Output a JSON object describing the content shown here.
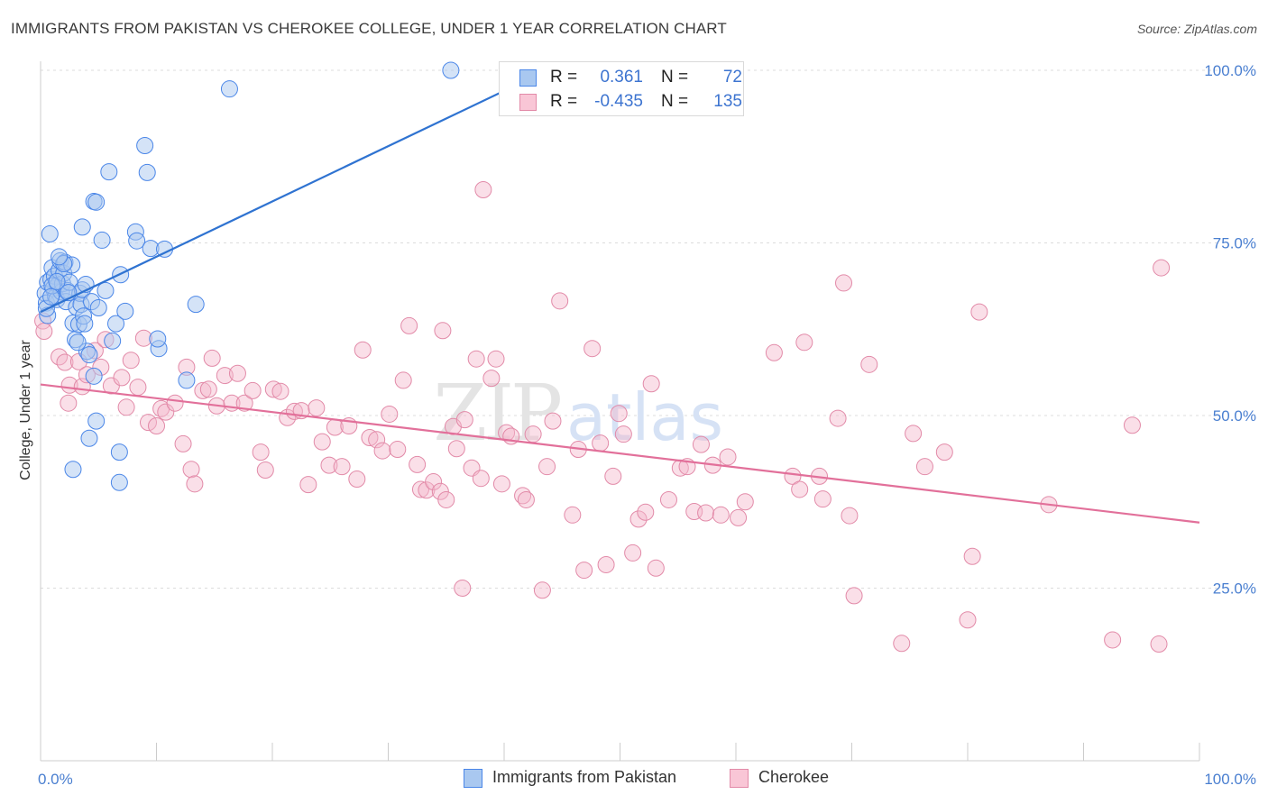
{
  "title": "IMMIGRANTS FROM PAKISTAN VS CHEROKEE COLLEGE, UNDER 1 YEAR CORRELATION CHART",
  "source": "Source: ZipAtlas.com",
  "watermark": {
    "zip": "ZIP",
    "atlas": "atlas"
  },
  "legend": {
    "rows": [
      {
        "r_label": "R =",
        "r_value": "0.361",
        "n_label": "N =",
        "n_value": "72",
        "color": "#4a86e8"
      },
      {
        "r_label": "R =",
        "r_value": "-0.435",
        "n_label": "N =",
        "n_value": "135",
        "color": "#e8719b"
      }
    ]
  },
  "bottom_legend": {
    "series1": "Immigrants from Pakistan",
    "series2": "Cherokee"
  },
  "colors": {
    "blue_fill": "#a9c8f0",
    "blue_stroke": "#4a86e8",
    "blue_line": "#2f73d1",
    "pink_fill": "#f5b8cc",
    "pink_stroke": "#e28aa8",
    "pink_line": "#e2709a",
    "grid": "#dcdcdc",
    "tick_text": "#4a7fd0"
  },
  "chart_data": {
    "type": "scatter",
    "title": "IMMIGRANTS FROM PAKISTAN VS CHEROKEE COLLEGE, UNDER 1 YEAR CORRELATION CHART",
    "xlabel": "",
    "ylabel": "College, Under 1 year",
    "xlim": [
      0,
      100
    ],
    "ylim": [
      0,
      105
    ],
    "x_tick_labels": [
      "0.0%",
      "100.0%"
    ],
    "y_ticks": [
      25,
      50,
      75,
      100
    ],
    "y_tick_labels": [
      "25.0%",
      "50.0%",
      "75.0%",
      "100.0%"
    ],
    "series": [
      {
        "name": "Immigrants from Pakistan",
        "r": 0.361,
        "n": 72,
        "trend": {
          "x": [
            0,
            40.6
          ],
          "y": [
            65.0,
            97.5
          ]
        },
        "points": [
          [
            0.4,
            67.7
          ],
          [
            0.5,
            66.3
          ],
          [
            0.6,
            69.3
          ],
          [
            0.8,
            76.3
          ],
          [
            0.9,
            69.7
          ],
          [
            1.0,
            71.4
          ],
          [
            1.1,
            68.4
          ],
          [
            1.2,
            70.2
          ],
          [
            1.3,
            67.2
          ],
          [
            1.4,
            66.8
          ],
          [
            1.5,
            68.9
          ],
          [
            1.6,
            71.0
          ],
          [
            1.7,
            72.4
          ],
          [
            1.8,
            67.9
          ],
          [
            1.9,
            69.1
          ],
          [
            2.0,
            70.6
          ],
          [
            2.1,
            72.2
          ],
          [
            2.2,
            66.5
          ],
          [
            2.3,
            68.1
          ],
          [
            2.5,
            69.3
          ],
          [
            2.7,
            71.8
          ],
          [
            2.8,
            63.4
          ],
          [
            3.0,
            61.0
          ],
          [
            3.1,
            65.7
          ],
          [
            3.3,
            63.2
          ],
          [
            3.4,
            67.7
          ],
          [
            3.5,
            66.1
          ],
          [
            3.6,
            68.2
          ],
          [
            3.7,
            64.4
          ],
          [
            3.8,
            63.3
          ],
          [
            3.9,
            69.0
          ],
          [
            3.6,
            77.3
          ],
          [
            4.0,
            59.3
          ],
          [
            4.2,
            58.8
          ],
          [
            4.4,
            66.5
          ],
          [
            4.6,
            81.0
          ],
          [
            4.8,
            80.9
          ],
          [
            5.0,
            65.6
          ],
          [
            5.3,
            75.4
          ],
          [
            5.6,
            68.1
          ],
          [
            5.9,
            85.3
          ],
          [
            6.2,
            60.8
          ],
          [
            6.5,
            63.3
          ],
          [
            6.9,
            70.4
          ],
          [
            7.3,
            65.1
          ],
          [
            8.2,
            76.6
          ],
          [
            8.3,
            75.3
          ],
          [
            9.0,
            89.1
          ],
          [
            9.2,
            85.2
          ],
          [
            9.5,
            74.2
          ],
          [
            10.2,
            59.7
          ],
          [
            10.1,
            61.1
          ],
          [
            10.7,
            74.1
          ],
          [
            12.6,
            55.1
          ],
          [
            13.4,
            66.1
          ],
          [
            16.3,
            97.3
          ],
          [
            35.4,
            100.0
          ],
          [
            4.2,
            46.7
          ],
          [
            4.8,
            49.2
          ],
          [
            2.8,
            42.2
          ],
          [
            6.8,
            44.7
          ],
          [
            6.8,
            40.3
          ],
          [
            0.6,
            64.5
          ],
          [
            0.5,
            65.5
          ],
          [
            1.0,
            68.8
          ],
          [
            1.4,
            69.4
          ],
          [
            2.0,
            72.0
          ],
          [
            2.4,
            67.8
          ],
          [
            3.2,
            60.6
          ],
          [
            4.6,
            55.7
          ],
          [
            1.6,
            73.0
          ],
          [
            0.9,
            67.2
          ]
        ]
      },
      {
        "name": "Cherokee",
        "r": -0.435,
        "n": 135,
        "trend": {
          "x": [
            0,
            100
          ],
          "y": [
            54.5,
            34.5
          ]
        },
        "points": [
          [
            0.2,
            63.7
          ],
          [
            0.3,
            62.2
          ],
          [
            1.6,
            58.5
          ],
          [
            2.1,
            57.7
          ],
          [
            2.4,
            51.8
          ],
          [
            2.5,
            54.4
          ],
          [
            3.3,
            57.8
          ],
          [
            3.6,
            54.2
          ],
          [
            4.0,
            55.9
          ],
          [
            4.7,
            59.4
          ],
          [
            5.2,
            57.0
          ],
          [
            5.6,
            61.0
          ],
          [
            6.1,
            54.3
          ],
          [
            7.0,
            55.5
          ],
          [
            7.4,
            51.2
          ],
          [
            7.8,
            58.0
          ],
          [
            8.4,
            54.1
          ],
          [
            8.9,
            61.2
          ],
          [
            9.3,
            49.0
          ],
          [
            10.0,
            48.5
          ],
          [
            10.4,
            51.0
          ],
          [
            10.8,
            50.5
          ],
          [
            11.6,
            51.8
          ],
          [
            12.3,
            45.9
          ],
          [
            12.6,
            57.0
          ],
          [
            13.0,
            42.2
          ],
          [
            13.3,
            40.1
          ],
          [
            14.0,
            53.6
          ],
          [
            14.5,
            53.8
          ],
          [
            14.8,
            58.3
          ],
          [
            15.2,
            51.4
          ],
          [
            15.9,
            55.8
          ],
          [
            16.5,
            51.8
          ],
          [
            17.0,
            56.1
          ],
          [
            17.6,
            51.8
          ],
          [
            18.3,
            53.6
          ],
          [
            19.0,
            44.7
          ],
          [
            19.4,
            42.1
          ],
          [
            20.1,
            53.8
          ],
          [
            20.7,
            53.5
          ],
          [
            21.3,
            49.7
          ],
          [
            21.9,
            50.6
          ],
          [
            22.5,
            50.7
          ],
          [
            23.1,
            40.0
          ],
          [
            23.8,
            51.1
          ],
          [
            24.3,
            46.2
          ],
          [
            24.9,
            42.8
          ],
          [
            25.4,
            48.3
          ],
          [
            26.0,
            42.6
          ],
          [
            26.6,
            48.5
          ],
          [
            27.3,
            40.8
          ],
          [
            27.8,
            59.5
          ],
          [
            28.4,
            46.8
          ],
          [
            29.0,
            46.5
          ],
          [
            29.5,
            44.9
          ],
          [
            30.1,
            50.2
          ],
          [
            30.8,
            45.1
          ],
          [
            31.3,
            55.1
          ],
          [
            31.8,
            63.0
          ],
          [
            32.5,
            42.9
          ],
          [
            32.8,
            39.3
          ],
          [
            33.3,
            39.2
          ],
          [
            33.9,
            40.4
          ],
          [
            34.5,
            39.0
          ],
          [
            34.7,
            62.3
          ],
          [
            35.0,
            37.8
          ],
          [
            35.6,
            48.4
          ],
          [
            35.9,
            45.2
          ],
          [
            36.6,
            49.4
          ],
          [
            37.2,
            42.4
          ],
          [
            37.6,
            58.2
          ],
          [
            38.0,
            40.9
          ],
          [
            38.9,
            55.4
          ],
          [
            39.3,
            58.2
          ],
          [
            39.8,
            40.1
          ],
          [
            40.2,
            47.5
          ],
          [
            40.6,
            47.0
          ],
          [
            41.6,
            38.4
          ],
          [
            41.9,
            37.8
          ],
          [
            42.5,
            47.3
          ],
          [
            43.3,
            24.7
          ],
          [
            43.7,
            42.6
          ],
          [
            44.2,
            49.2
          ],
          [
            44.8,
            66.6
          ],
          [
            45.9,
            35.6
          ],
          [
            46.4,
            45.1
          ],
          [
            46.9,
            27.6
          ],
          [
            47.6,
            59.7
          ],
          [
            48.3,
            46.0
          ],
          [
            48.8,
            28.4
          ],
          [
            49.4,
            41.2
          ],
          [
            49.9,
            50.3
          ],
          [
            50.3,
            47.3
          ],
          [
            51.1,
            30.1
          ],
          [
            51.6,
            35.0
          ],
          [
            52.2,
            36.0
          ],
          [
            52.7,
            54.6
          ],
          [
            53.1,
            27.9
          ],
          [
            54.2,
            37.8
          ],
          [
            55.2,
            42.4
          ],
          [
            55.8,
            42.6
          ],
          [
            56.4,
            36.1
          ],
          [
            57.0,
            45.8
          ],
          [
            57.4,
            35.9
          ],
          [
            58.0,
            42.8
          ],
          [
            58.7,
            35.6
          ],
          [
            59.3,
            44.0
          ],
          [
            60.2,
            35.2
          ],
          [
            60.8,
            37.5
          ],
          [
            63.3,
            59.1
          ],
          [
            64.9,
            41.2
          ],
          [
            65.5,
            39.3
          ],
          [
            65.9,
            60.6
          ],
          [
            67.2,
            41.2
          ],
          [
            67.5,
            37.9
          ],
          [
            68.8,
            49.6
          ],
          [
            69.3,
            69.2
          ],
          [
            69.8,
            35.5
          ],
          [
            70.2,
            23.9
          ],
          [
            71.5,
            57.4
          ],
          [
            74.3,
            17.0
          ],
          [
            75.3,
            47.4
          ],
          [
            76.3,
            42.6
          ],
          [
            78.0,
            44.7
          ],
          [
            80.0,
            20.4
          ],
          [
            80.4,
            29.6
          ],
          [
            81.0,
            65.0
          ],
          [
            87.0,
            37.1
          ],
          [
            92.5,
            17.5
          ],
          [
            94.2,
            48.6
          ],
          [
            96.5,
            16.9
          ],
          [
            96.7,
            71.4
          ],
          [
            36.4,
            25.0
          ],
          [
            38.2,
            82.7
          ]
        ]
      }
    ]
  }
}
